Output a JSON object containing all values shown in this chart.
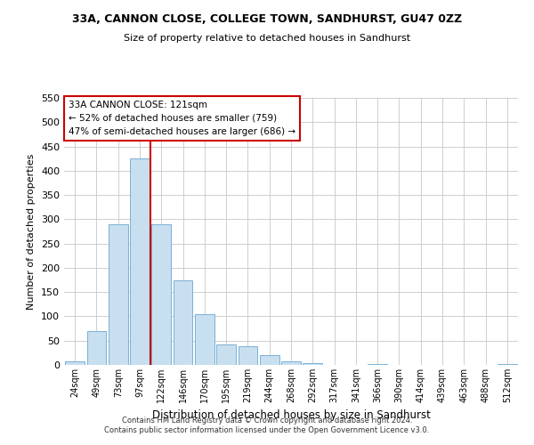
{
  "title": "33A, CANNON CLOSE, COLLEGE TOWN, SANDHURST, GU47 0ZZ",
  "subtitle": "Size of property relative to detached houses in Sandhurst",
  "xlabel": "Distribution of detached houses by size in Sandhurst",
  "ylabel": "Number of detached properties",
  "bar_labels": [
    "24sqm",
    "49sqm",
    "73sqm",
    "97sqm",
    "122sqm",
    "146sqm",
    "170sqm",
    "195sqm",
    "219sqm",
    "244sqm",
    "268sqm",
    "292sqm",
    "317sqm",
    "341sqm",
    "366sqm",
    "390sqm",
    "414sqm",
    "439sqm",
    "463sqm",
    "488sqm",
    "512sqm"
  ],
  "bar_values": [
    8,
    70,
    290,
    425,
    290,
    175,
    105,
    43,
    38,
    20,
    7,
    3,
    0,
    0,
    2,
    0,
    0,
    0,
    0,
    0,
    2
  ],
  "bar_color": "#c8dff0",
  "bar_edge_color": "#7ab0d4",
  "vline_color": "#cc0000",
  "annotation_title": "33A CANNON CLOSE: 121sqm",
  "annotation_line1": "← 52% of detached houses are smaller (759)",
  "annotation_line2": "47% of semi-detached houses are larger (686) →",
  "annotation_box_color": "#ffffff",
  "annotation_box_edge": "#cc0000",
  "ylim": [
    0,
    550
  ],
  "yticks": [
    0,
    50,
    100,
    150,
    200,
    250,
    300,
    350,
    400,
    450,
    500,
    550
  ],
  "footer_line1": "Contains HM Land Registry data © Crown copyright and database right 2024.",
  "footer_line2": "Contains public sector information licensed under the Open Government Licence v3.0.",
  "background_color": "#ffffff",
  "grid_color": "#c8c8c8"
}
